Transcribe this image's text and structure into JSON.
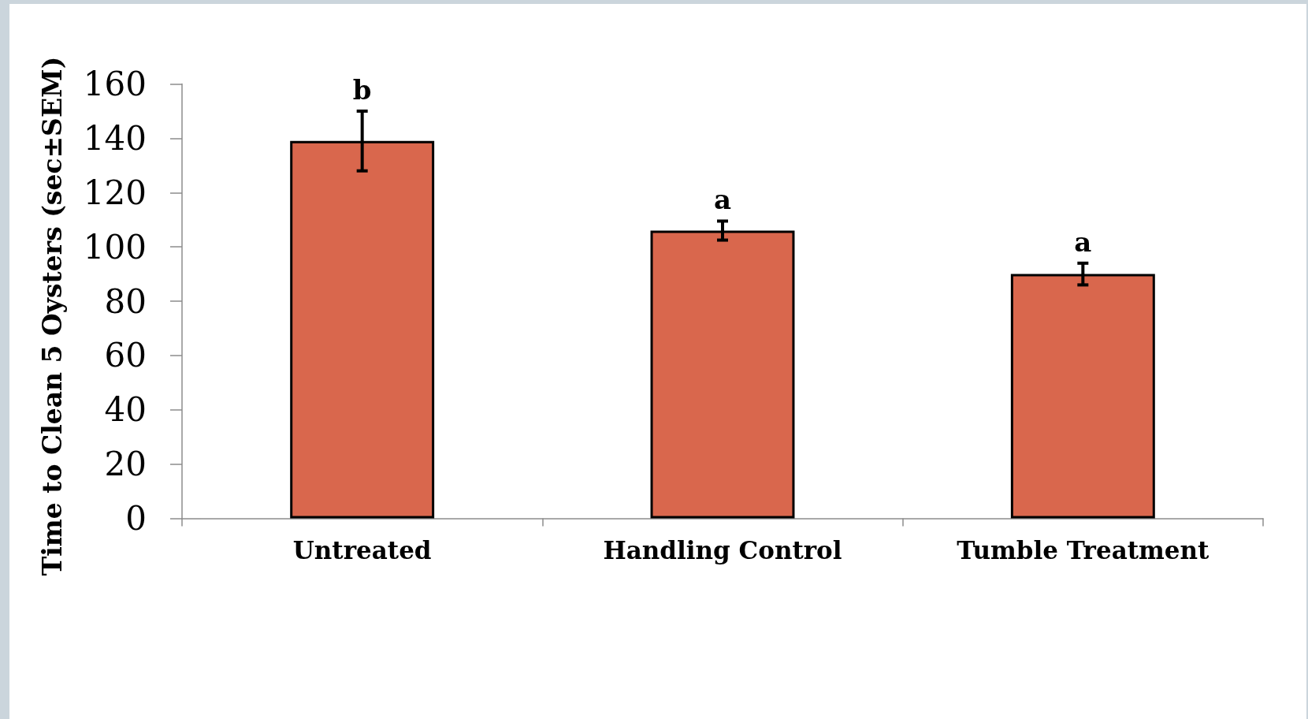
{
  "chart_data": {
    "type": "bar",
    "ylabel": "Time to Clean 5 Oysters (sec±SEM)",
    "categories": [
      "Untreated",
      "Handling Control",
      "Tumble Treatment"
    ],
    "values": [
      139,
      106,
      90
    ],
    "errors": [
      11,
      3.5,
      4
    ],
    "color": "#d9674d",
    "ylim": [
      0,
      160
    ],
    "yticks": [
      0,
      20,
      40,
      60,
      80,
      100,
      120,
      140,
      160
    ],
    "annotations": [
      "b",
      "a",
      "a"
    ]
  }
}
